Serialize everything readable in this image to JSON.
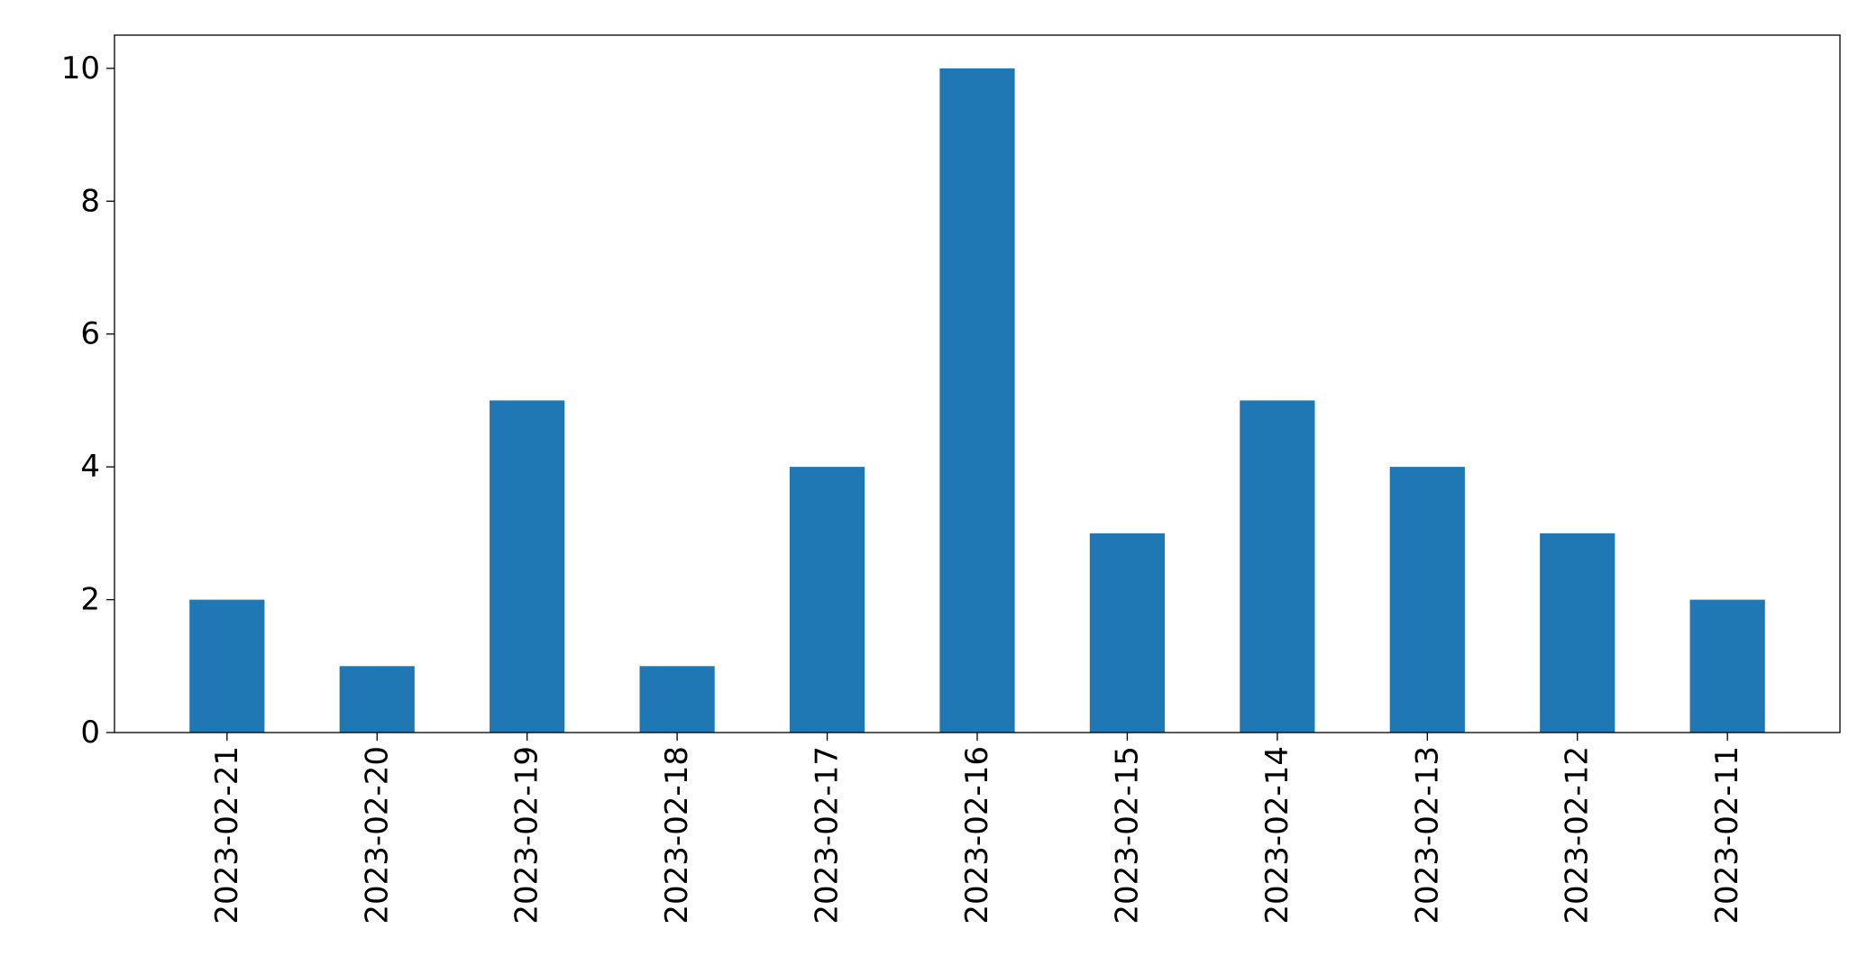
{
  "chart_data": {
    "type": "bar",
    "categories": [
      "2023-02-21",
      "2023-02-20",
      "2023-02-19",
      "2023-02-18",
      "2023-02-17",
      "2023-02-16",
      "2023-02-15",
      "2023-02-14",
      "2023-02-13",
      "2023-02-12",
      "2023-02-11"
    ],
    "values": [
      2,
      1,
      5,
      1,
      4,
      10,
      3,
      5,
      4,
      3,
      2
    ],
    "title": "",
    "xlabel": "",
    "ylabel": "",
    "ylim": [
      0,
      10.5
    ],
    "yticks": [
      0,
      2,
      4,
      6,
      8,
      10
    ],
    "grid": false,
    "legend": "none",
    "bar_color": "#1f77b4"
  }
}
